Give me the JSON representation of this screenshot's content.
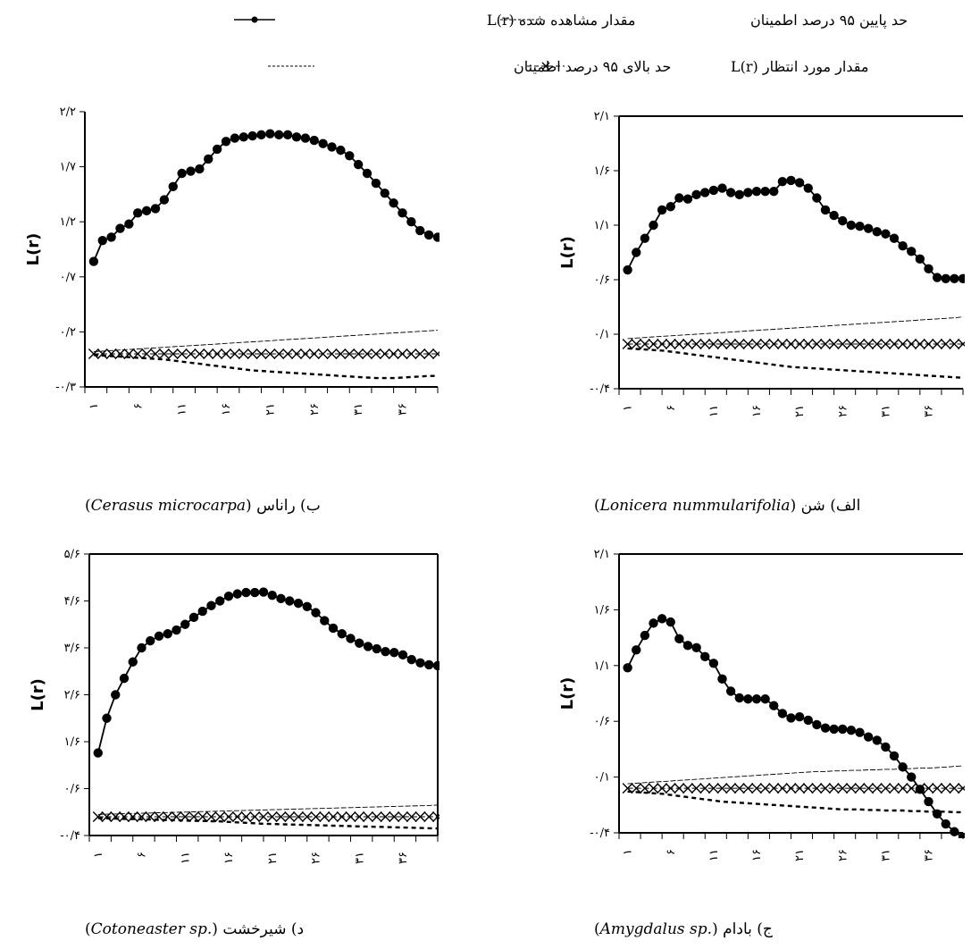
{
  "legend": {
    "items": [
      {
        "label": "مقدار مشاهده شده  L(r)",
        "style": "observed"
      },
      {
        "label": "حد پایین ۹۵ درصد اطمینان",
        "style": "lower"
      },
      {
        "label": "حد بالای ۹۵ درصد اطمینان",
        "style": "upper"
      },
      {
        "label": "مقدار مورد انتظار  L(r)",
        "style": "expected"
      }
    ]
  },
  "colors": {
    "ink": "#000000",
    "background": "#ffffff"
  },
  "chart_data": [
    {
      "type": "line",
      "id": "alef",
      "caption_prefix": "الف) شن ",
      "caption_species": "Lonicera nummularifolia",
      "ylabel": "L(r)",
      "ylim": [
        -0.4,
        2.1
      ],
      "yticks": [
        {
          "v": 2.1,
          "label": "۲/۱"
        },
        {
          "v": 1.6,
          "label": "۱/۶"
        },
        {
          "v": 1.1,
          "label": "۱/۱"
        },
        {
          "v": 0.6,
          "label": "۰/۶"
        },
        {
          "v": 0.1,
          "label": "۰/۱"
        },
        {
          "v": -0.4,
          "label": "-۰/۴"
        }
      ],
      "xlim": [
        0,
        40
      ],
      "xticks": [
        {
          "v": 1,
          "label": "۱"
        },
        {
          "v": 6,
          "label": "۶"
        },
        {
          "v": 11,
          "label": "۱۱"
        },
        {
          "v": 16,
          "label": "۱۶"
        },
        {
          "v": 21,
          "label": "۲۱"
        },
        {
          "v": 26,
          "label": "۲۶"
        },
        {
          "v": 31,
          "label": "۳۱"
        },
        {
          "v": 36,
          "label": "۳۶"
        }
      ],
      "observed": [
        0.69,
        0.85,
        0.98,
        1.1,
        1.24,
        1.27,
        1.35,
        1.34,
        1.38,
        1.4,
        1.42,
        1.44,
        1.4,
        1.38,
        1.4,
        1.41,
        1.41,
        1.41,
        1.5,
        1.51,
        1.49,
        1.44,
        1.35,
        1.24,
        1.19,
        1.14,
        1.1,
        1.09,
        1.07,
        1.04,
        1.02,
        0.98,
        0.91,
        0.86,
        0.79,
        0.7,
        0.62,
        0.61,
        0.61,
        0.61
      ],
      "expected": [
        0.01,
        0.01,
        0.01,
        0.01,
        0.01,
        0.01,
        0.01,
        0.01,
        0.01,
        0.01,
        0.01,
        0.01,
        0.01,
        0.01,
        0.01,
        0.01,
        0.01,
        0.01,
        0.01,
        0.01,
        0.01,
        0.01,
        0.01,
        0.01,
        0.01,
        0.01,
        0.01,
        0.01,
        0.01,
        0.01,
        0.01,
        0.01,
        0.01,
        0.01,
        0.01,
        0.01,
        0.01,
        0.01,
        0.01,
        0.01
      ],
      "upper": [
        0.06,
        0.065,
        0.07,
        0.075,
        0.08,
        0.085,
        0.09,
        0.095,
        0.1,
        0.105,
        0.11,
        0.115,
        0.12,
        0.125,
        0.13,
        0.135,
        0.14,
        0.145,
        0.15,
        0.155,
        0.16,
        0.165,
        0.17,
        0.175,
        0.18,
        0.185,
        0.19,
        0.195,
        0.2,
        0.205,
        0.21,
        0.215,
        0.22,
        0.225,
        0.23,
        0.235,
        0.24,
        0.245,
        0.25,
        0.26
      ],
      "lower": [
        -0.03,
        -0.035,
        -0.04,
        -0.045,
        -0.05,
        -0.06,
        -0.07,
        -0.08,
        -0.09,
        -0.1,
        -0.11,
        -0.12,
        -0.13,
        -0.14,
        -0.15,
        -0.16,
        -0.17,
        -0.18,
        -0.19,
        -0.2,
        -0.205,
        -0.21,
        -0.215,
        -0.22,
        -0.225,
        -0.23,
        -0.235,
        -0.24,
        -0.245,
        -0.25,
        -0.255,
        -0.26,
        -0.265,
        -0.27,
        -0.275,
        -0.28,
        -0.285,
        -0.29,
        -0.295,
        -0.3
      ]
    },
    {
      "type": "line",
      "id": "be",
      "caption_prefix": "ب) راناس ",
      "caption_species": "Cerasus microcarpa",
      "ylabel": "L(r)",
      "ylim": [
        -0.3,
        2.2
      ],
      "yticks": [
        {
          "v": 2.2,
          "label": "۲/۲"
        },
        {
          "v": 1.7,
          "label": "۱/۷"
        },
        {
          "v": 1.2,
          "label": "۱/۲"
        },
        {
          "v": 0.7,
          "label": "۰/۷"
        },
        {
          "v": 0.2,
          "label": "۰/۲"
        },
        {
          "v": -0.3,
          "label": "-۰/۳"
        }
      ],
      "xlim": [
        0,
        40
      ],
      "xticks": [
        {
          "v": 1,
          "label": "۱"
        },
        {
          "v": 6,
          "label": "۶"
        },
        {
          "v": 11,
          "label": "۱۱"
        },
        {
          "v": 16,
          "label": "۱۶"
        },
        {
          "v": 21,
          "label": "۲۱"
        },
        {
          "v": 26,
          "label": "۲۶"
        },
        {
          "v": 31,
          "label": "۳۱"
        },
        {
          "v": 36,
          "label": "۳۶"
        }
      ],
      "observed": [
        0.84,
        1.03,
        1.06,
        1.14,
        1.18,
        1.28,
        1.3,
        1.32,
        1.4,
        1.52,
        1.64,
        1.66,
        1.68,
        1.77,
        1.86,
        1.93,
        1.96,
        1.97,
        1.98,
        1.99,
        2.0,
        1.99,
        1.99,
        1.97,
        1.96,
        1.94,
        1.91,
        1.88,
        1.85,
        1.8,
        1.72,
        1.64,
        1.55,
        1.46,
        1.37,
        1.28,
        1.2,
        1.12,
        1.08,
        1.06
      ],
      "expected": [
        0.0,
        0.0,
        0.0,
        0.0,
        0.0,
        0.0,
        0.0,
        0.0,
        0.0,
        0.0,
        0.0,
        0.0,
        0.0,
        0.0,
        0.0,
        0.0,
        0.0,
        0.0,
        0.0,
        0.0,
        0.0,
        0.0,
        0.0,
        0.0,
        0.0,
        0.0,
        0.0,
        0.0,
        0.0,
        0.0,
        0.0,
        0.0,
        0.0,
        0.0,
        0.0,
        0.0,
        0.0,
        0.0,
        0.0,
        0.0
      ],
      "upper": [
        0.02,
        0.025,
        0.03,
        0.035,
        0.04,
        0.045,
        0.05,
        0.055,
        0.06,
        0.065,
        0.07,
        0.075,
        0.08,
        0.085,
        0.09,
        0.095,
        0.1,
        0.105,
        0.11,
        0.115,
        0.12,
        0.125,
        0.13,
        0.135,
        0.14,
        0.145,
        0.15,
        0.155,
        0.16,
        0.165,
        0.17,
        0.175,
        0.18,
        0.185,
        0.19,
        0.195,
        0.2,
        0.205,
        0.21,
        0.215
      ],
      "lower": [
        -0.01,
        -0.015,
        -0.02,
        -0.025,
        -0.03,
        -0.035,
        -0.04,
        -0.045,
        -0.05,
        -0.06,
        -0.07,
        -0.08,
        -0.09,
        -0.1,
        -0.11,
        -0.12,
        -0.13,
        -0.14,
        -0.15,
        -0.155,
        -0.16,
        -0.165,
        -0.17,
        -0.175,
        -0.18,
        -0.185,
        -0.19,
        -0.195,
        -0.2,
        -0.205,
        -0.21,
        -0.215,
        -0.22,
        -0.22,
        -0.22,
        -0.215,
        -0.21,
        -0.205,
        -0.2,
        -0.2
      ]
    },
    {
      "type": "line",
      "id": "jim",
      "caption_prefix": "ج) بادام ",
      "caption_species": "Amygdalus sp.",
      "ylabel": "L(r)",
      "ylim": [
        -0.4,
        2.1
      ],
      "yticks": [
        {
          "v": 2.1,
          "label": "۲/۱"
        },
        {
          "v": 1.6,
          "label": "۱/۶"
        },
        {
          "v": 1.1,
          "label": "۱/۱"
        },
        {
          "v": 0.6,
          "label": "۰/۶"
        },
        {
          "v": 0.1,
          "label": "۰/۱"
        },
        {
          "v": -0.4,
          "label": "-۰/۴"
        }
      ],
      "xlim": [
        0,
        40
      ],
      "xticks": [
        {
          "v": 1,
          "label": "۱"
        },
        {
          "v": 6,
          "label": "۶"
        },
        {
          "v": 11,
          "label": "۱۱"
        },
        {
          "v": 16,
          "label": "۱۶"
        },
        {
          "v": 21,
          "label": "۲۱"
        },
        {
          "v": 26,
          "label": "۲۶"
        },
        {
          "v": 31,
          "label": "۳۱"
        },
        {
          "v": 36,
          "label": "۳۶"
        }
      ],
      "observed": [
        1.08,
        1.24,
        1.37,
        1.48,
        1.52,
        1.49,
        1.34,
        1.28,
        1.26,
        1.18,
        1.12,
        0.98,
        0.87,
        0.81,
        0.8,
        0.8,
        0.8,
        0.74,
        0.67,
        0.63,
        0.64,
        0.61,
        0.57,
        0.54,
        0.53,
        0.53,
        0.52,
        0.5,
        0.46,
        0.43,
        0.37,
        0.29,
        0.19,
        0.1,
        -0.01,
        -0.12,
        -0.23,
        -0.32,
        -0.39,
        -0.44
      ],
      "expected": [
        0.0,
        0.0,
        0.0,
        0.0,
        0.0,
        0.0,
        0.0,
        0.0,
        0.0,
        0.0,
        0.0,
        0.0,
        0.0,
        0.0,
        0.0,
        0.0,
        0.0,
        0.0,
        0.0,
        0.0,
        0.0,
        0.0,
        0.0,
        0.0,
        0.0,
        0.0,
        0.0,
        0.0,
        0.0,
        0.0,
        0.0,
        0.0,
        0.0,
        0.0,
        0.0,
        0.0,
        0.0,
        0.0,
        0.0,
        0.0
      ],
      "upper": [
        0.04,
        0.045,
        0.05,
        0.055,
        0.06,
        0.065,
        0.07,
        0.075,
        0.08,
        0.085,
        0.09,
        0.095,
        0.1,
        0.105,
        0.11,
        0.115,
        0.12,
        0.125,
        0.13,
        0.135,
        0.14,
        0.145,
        0.15,
        0.15,
        0.155,
        0.155,
        0.16,
        0.16,
        0.165,
        0.165,
        0.17,
        0.17,
        0.175,
        0.175,
        0.18,
        0.18,
        0.185,
        0.19,
        0.195,
        0.2
      ],
      "lower": [
        -0.03,
        -0.035,
        -0.04,
        -0.045,
        -0.05,
        -0.06,
        -0.07,
        -0.08,
        -0.09,
        -0.1,
        -0.11,
        -0.12,
        -0.125,
        -0.13,
        -0.135,
        -0.14,
        -0.145,
        -0.15,
        -0.155,
        -0.16,
        -0.165,
        -0.17,
        -0.175,
        -0.18,
        -0.185,
        -0.19,
        -0.19,
        -0.19,
        -0.195,
        -0.195,
        -0.2,
        -0.2,
        -0.2,
        -0.205,
        -0.205,
        -0.21,
        -0.21,
        -0.21,
        -0.215,
        -0.215
      ]
    },
    {
      "type": "line",
      "id": "dal",
      "caption_prefix": "د) شیرخشت ",
      "caption_species": "Cotoneaster sp.",
      "ylabel": "L(r)",
      "ylim": [
        -0.4,
        5.6
      ],
      "yticks": [
        {
          "v": 5.6,
          "label": "۵/۶"
        },
        {
          "v": 4.6,
          "label": "۴/۶"
        },
        {
          "v": 3.6,
          "label": "۳/۶"
        },
        {
          "v": 2.6,
          "label": "۲/۶"
        },
        {
          "v": 1.6,
          "label": "۱/۶"
        },
        {
          "v": 0.6,
          "label": "۰/۶"
        },
        {
          "v": -0.4,
          "label": "-۰/۴"
        }
      ],
      "xlim": [
        0,
        40
      ],
      "xticks": [
        {
          "v": 1,
          "label": "۱"
        },
        {
          "v": 6,
          "label": "۶"
        },
        {
          "v": 11,
          "label": "۱۱"
        },
        {
          "v": 16,
          "label": "۱۶"
        },
        {
          "v": 21,
          "label": "۲۱"
        },
        {
          "v": 26,
          "label": "۲۶"
        },
        {
          "v": 31,
          "label": "۳۱"
        },
        {
          "v": 36,
          "label": "۳۶"
        }
      ],
      "observed": [
        1.36,
        2.1,
        2.6,
        2.95,
        3.3,
        3.6,
        3.75,
        3.85,
        3.9,
        3.98,
        4.1,
        4.25,
        4.38,
        4.5,
        4.6,
        4.7,
        4.75,
        4.78,
        4.78,
        4.79,
        4.72,
        4.65,
        4.6,
        4.55,
        4.48,
        4.35,
        4.18,
        4.02,
        3.9,
        3.8,
        3.7,
        3.63,
        3.58,
        3.52,
        3.5,
        3.45,
        3.35,
        3.28,
        3.24,
        3.22
      ],
      "expected": [
        0.0,
        0.0,
        0.0,
        0.0,
        0.0,
        0.0,
        0.0,
        0.0,
        0.0,
        0.0,
        0.0,
        0.0,
        0.0,
        0.0,
        0.0,
        0.0,
        0.0,
        0.0,
        0.0,
        0.0,
        0.0,
        0.0,
        0.0,
        0.0,
        0.0,
        0.0,
        0.0,
        0.0,
        0.0,
        0.0,
        0.0,
        0.0,
        0.0,
        0.0,
        0.0,
        0.0,
        0.0,
        0.0,
        0.0,
        0.0
      ],
      "upper": [
        0.05,
        0.055,
        0.06,
        0.065,
        0.07,
        0.075,
        0.08,
        0.085,
        0.09,
        0.095,
        0.1,
        0.105,
        0.11,
        0.115,
        0.12,
        0.125,
        0.13,
        0.135,
        0.14,
        0.145,
        0.15,
        0.155,
        0.16,
        0.165,
        0.17,
        0.175,
        0.18,
        0.185,
        0.19,
        0.195,
        0.2,
        0.205,
        0.21,
        0.215,
        0.22,
        0.225,
        0.23,
        0.235,
        0.24,
        0.25
      ],
      "lower": [
        -0.03,
        -0.035,
        -0.04,
        -0.045,
        -0.05,
        -0.055,
        -0.06,
        -0.065,
        -0.07,
        -0.075,
        -0.08,
        -0.085,
        -0.09,
        -0.095,
        -0.1,
        -0.11,
        -0.12,
        -0.13,
        -0.14,
        -0.15,
        -0.155,
        -0.16,
        -0.165,
        -0.17,
        -0.175,
        -0.18,
        -0.185,
        -0.19,
        -0.195,
        -0.2,
        -0.205,
        -0.21,
        -0.215,
        -0.22,
        -0.225,
        -0.23,
        -0.235,
        -0.24,
        -0.245,
        -0.25
      ]
    }
  ]
}
